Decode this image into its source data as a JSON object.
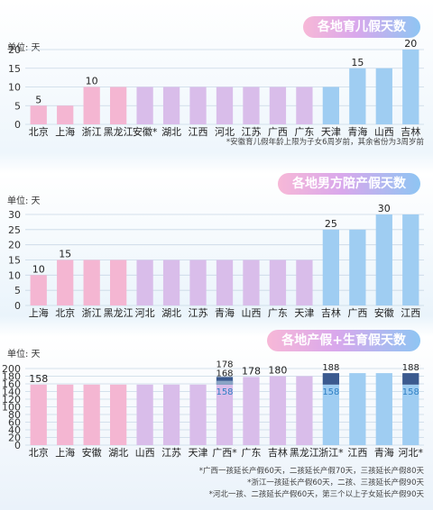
{
  "chart_data": [
    {
      "type": "bar",
      "title": "各地育儿假天数",
      "unit_label": "单位: 天",
      "ylim": [
        0,
        20
      ],
      "yticks": [
        0,
        5,
        10,
        15,
        20
      ],
      "grid": true,
      "categories": [
        "北京",
        "上海",
        "浙江",
        "黑龙江",
        "安徽*",
        "湖北",
        "江西",
        "河北",
        "江苏",
        "广西",
        "广东",
        "天津",
        "青海",
        "山西",
        "吉林"
      ],
      "values": [
        5,
        5,
        10,
        10,
        10,
        10,
        10,
        10,
        10,
        10,
        10,
        10,
        15,
        15,
        20
      ],
      "data_labels": [
        "5",
        "",
        "10",
        "",
        "",
        "",
        "",
        "",
        "",
        "",
        "",
        "",
        "15",
        "",
        "20"
      ],
      "note": "*安徽育儿假年龄上限为子女6周岁前，其余省份为3周岁前"
    },
    {
      "type": "bar",
      "title": "各地男方陪产假天数",
      "unit_label": "单位: 天",
      "ylim": [
        0,
        30
      ],
      "yticks": [
        0,
        5,
        10,
        15,
        20,
        25,
        30
      ],
      "grid": true,
      "categories": [
        "上海",
        "北京",
        "浙江",
        "黑龙江",
        "河北",
        "湖北",
        "江苏",
        "青海",
        "山西",
        "广东",
        "天津",
        "吉林",
        "广西",
        "安徽",
        "江西"
      ],
      "values": [
        10,
        15,
        15,
        15,
        15,
        15,
        15,
        15,
        15,
        15,
        15,
        25,
        25,
        30,
        30
      ],
      "data_labels": [
        "10",
        "15",
        "",
        "",
        "",
        "",
        "",
        "",
        "",
        "",
        "",
        "25",
        "",
        "30",
        ""
      ]
    },
    {
      "type": "bar",
      "title": "各地产假+生育假天数",
      "unit_label": "单位: 天",
      "ylim": [
        0,
        200
      ],
      "yticks": [
        0,
        20,
        40,
        60,
        80,
        100,
        120,
        140,
        160,
        180,
        200
      ],
      "grid": true,
      "categories": [
        "北京",
        "上海",
        "安徽",
        "湖北",
        "山西",
        "江苏",
        "天津",
        "广西*",
        "广东",
        "吉林",
        "黑龙江",
        "浙江*",
        "江西",
        "青海",
        "河北*"
      ],
      "values": [
        158,
        158,
        158,
        158,
        158,
        158,
        158,
        158,
        178,
        180,
        180,
        158,
        188,
        188,
        158
      ],
      "extended_values": [
        null,
        null,
        null,
        null,
        null,
        null,
        null,
        178,
        null,
        null,
        null,
        188,
        null,
        null,
        188
      ],
      "mid_values": [
        null,
        null,
        null,
        null,
        null,
        null,
        null,
        168,
        null,
        null,
        null,
        null,
        null,
        null,
        null
      ],
      "data_labels": [
        "158",
        "",
        "",
        "",
        "",
        "",
        "",
        "158",
        "178",
        "180",
        "",
        "158",
        "",
        "",
        "158"
      ],
      "top_labels": [
        "",
        "",
        "",
        "",
        "",
        "",
        "",
        "178",
        "",
        "",
        "",
        "188",
        "",
        "",
        "188"
      ],
      "mid_labels": [
        "",
        "",
        "",
        "",
        "",
        "",
        "",
        "168",
        "",
        "",
        "",
        "",
        "",
        "",
        ""
      ],
      "notes": [
        "*广西一孩延长产假60天，二孩延长产假70天，三孩延长产假80天",
        "*浙江一孩延长产假60天，二孩、三孩延长产假90天",
        "*河北一孩、二孩延长产假60天，第三个以上子女延长产假90天"
      ]
    }
  ],
  "colors": {
    "pink": "#f4b6d2",
    "purple": "#d9bdea",
    "blue": "#9fcdf2",
    "dark_ext": "#3b5a8f",
    "mid_ext": "#8aa4c6",
    "grid": "#c9d8e6",
    "label_blue": "#2f7fc4"
  }
}
